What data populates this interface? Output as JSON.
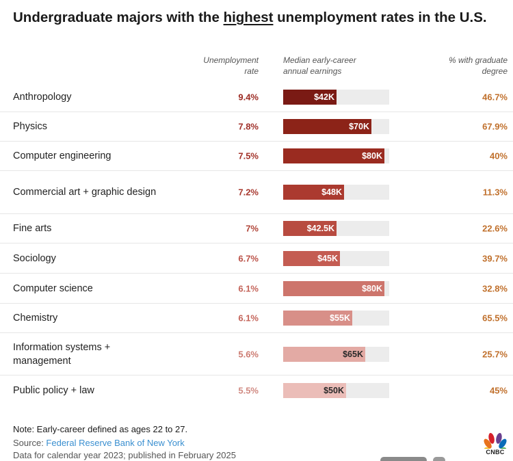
{
  "title": {
    "prefix": "Undergraduate majors with the ",
    "highlight": "highest",
    "suffix": " unemployment rates in the U.S."
  },
  "columns": {
    "unemployment": [
      "Unemployment",
      "rate"
    ],
    "earnings": [
      "Median early-career",
      "annual earnings"
    ],
    "graduate": [
      "% with graduate",
      "degree"
    ]
  },
  "chart_data": {
    "type": "table",
    "title": "Undergraduate majors with the highest unemployment rates in the U.S.",
    "bar_max": 84,
    "rows": [
      {
        "major": "Anthropology",
        "unemployment_rate": "9.4%",
        "earnings_value": 42,
        "earnings_label": "$42K",
        "grad_degree": "46.7%",
        "color": "#7a1a14",
        "label_color": "#ffffff",
        "rate_color": "#9c2a22"
      },
      {
        "major": "Physics",
        "unemployment_rate": "7.8%",
        "earnings_value": 70,
        "earnings_label": "$70K",
        "grad_degree": "67.9%",
        "color": "#8c2318",
        "label_color": "#ffffff",
        "rate_color": "#a0302a"
      },
      {
        "major": "Computer engineering",
        "unemployment_rate": "7.5%",
        "earnings_value": 80,
        "earnings_label": "$80K",
        "grad_degree": "40%",
        "color": "#9a2b20",
        "label_color": "#ffffff",
        "rate_color": "#a33229"
      },
      {
        "major": "Commercial art + graphic design",
        "unemployment_rate": "7.2%",
        "earnings_value": 48,
        "earnings_label": "$48K",
        "grad_degree": "11.3%",
        "color": "#ab3a2f",
        "label_color": "#ffffff",
        "rate_color": "#a8392f"
      },
      {
        "major": "Fine arts",
        "unemployment_rate": "7%",
        "earnings_value": 42.5,
        "earnings_label": "$42.5K",
        "grad_degree": "22.6%",
        "color": "#b84b40",
        "label_color": "#ffffff",
        "rate_color": "#b04438"
      },
      {
        "major": "Sociology",
        "unemployment_rate": "6.7%",
        "earnings_value": 45,
        "earnings_label": "$45K",
        "grad_degree": "39.7%",
        "color": "#c45c52",
        "label_color": "#ffffff",
        "rate_color": "#bb5248"
      },
      {
        "major": "Computer science",
        "unemployment_rate": "6.1%",
        "earnings_value": 80,
        "earnings_label": "$80K",
        "grad_degree": "32.8%",
        "color": "#cd756c",
        "label_color": "#ffffff",
        "rate_color": "#c4645a"
      },
      {
        "major": "Chemistry",
        "unemployment_rate": "6.1%",
        "earnings_value": 55,
        "earnings_label": "$55K",
        "grad_degree": "65.5%",
        "color": "#d88f88",
        "label_color": "#ffffff",
        "rate_color": "#c4645a"
      },
      {
        "major": "Information systems + management",
        "unemployment_rate": "5.6%",
        "earnings_value": 65,
        "earnings_label": "$65K",
        "grad_degree": "25.7%",
        "color": "#e3aaa4",
        "label_color": "#2a2a2a",
        "rate_color": "#cc7a70"
      },
      {
        "major": "Public policy + law",
        "unemployment_rate": "5.5%",
        "earnings_value": 50,
        "earnings_label": "$50K",
        "grad_degree": "45%",
        "color": "#ebbdb8",
        "label_color": "#2a2a2a",
        "rate_color": "#d08a82"
      }
    ]
  },
  "note": "Note: Early-career defined as ages 22 to 27.",
  "source": {
    "prefix": "Source: ",
    "link": "Federal Reserve Bank of New York"
  },
  "data_line": "Data for calendar year 2023; published in February 2025",
  "logo": {
    "text": "CNBC",
    "icon": "peacock-icon"
  }
}
